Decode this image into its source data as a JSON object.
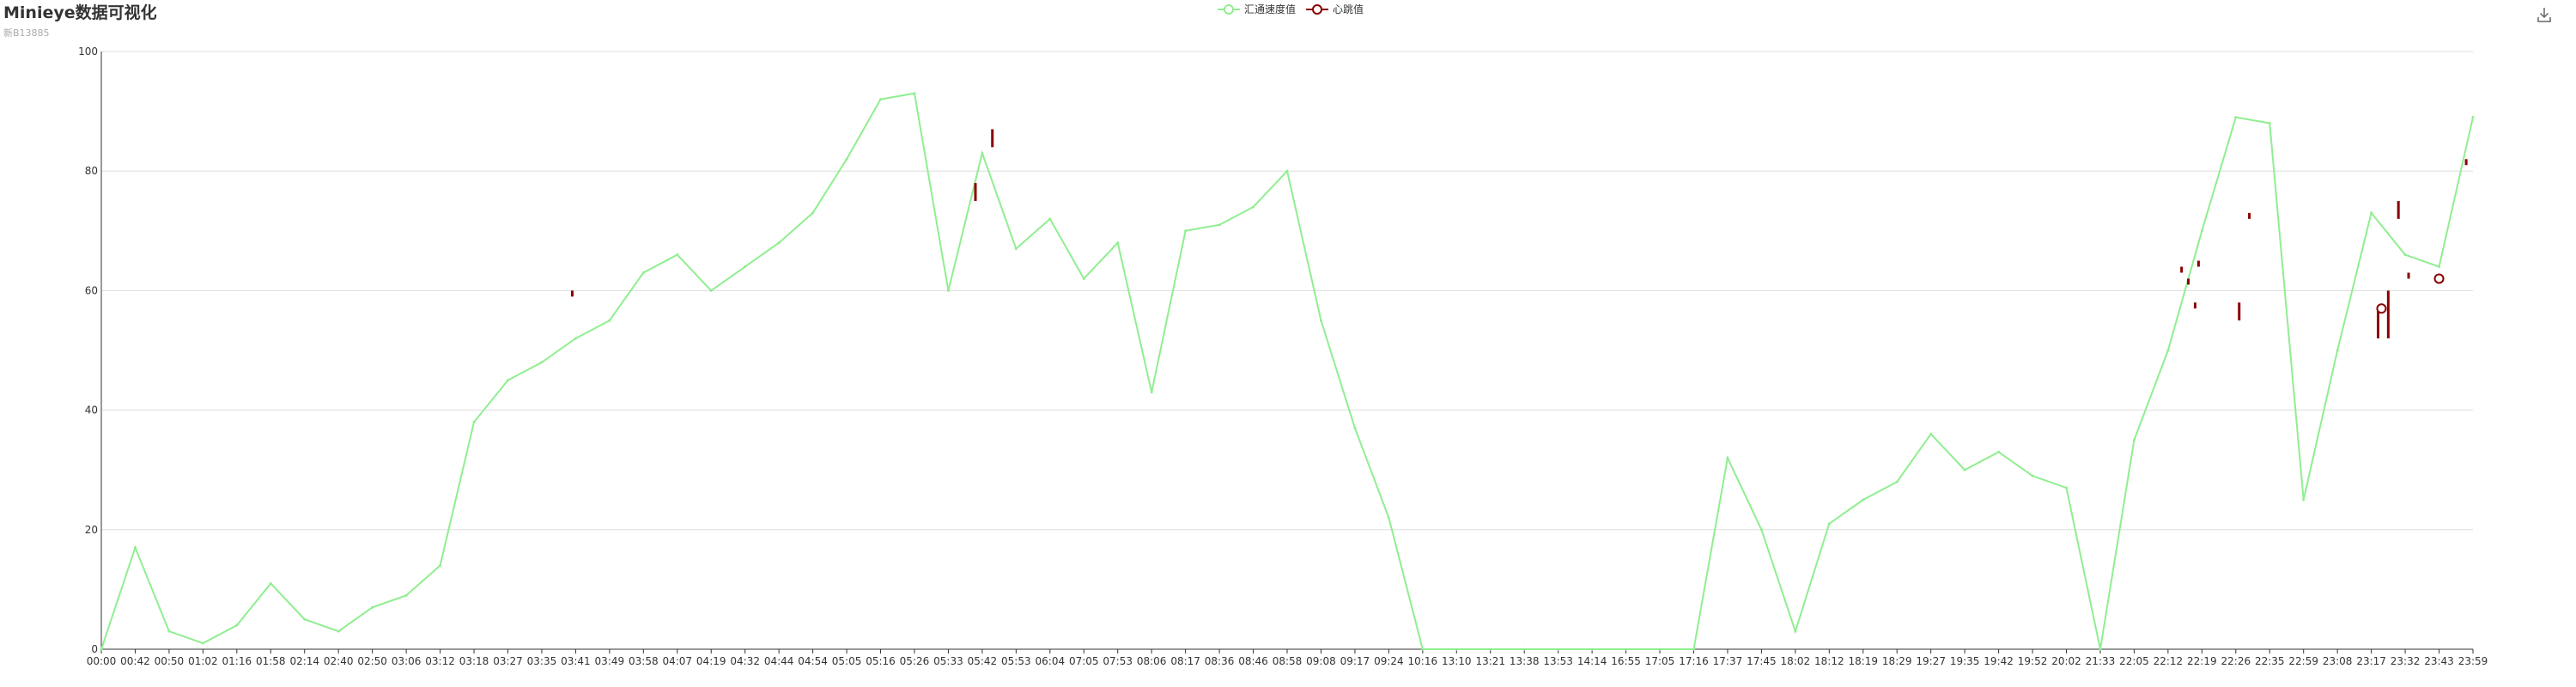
{
  "header": {
    "title": "Minieye数据可视化",
    "subtitle": "新B13885"
  },
  "legend": [
    {
      "label": "汇通速度值",
      "color": "#90ee90"
    },
    {
      "label": "心跳值",
      "color": "#8b0000"
    }
  ],
  "toolbar": {
    "save_icon": "download-icon"
  },
  "chart_data": {
    "type": "line",
    "title": "Minieye数据可视化",
    "subtitle": "新B13885",
    "xlabel": "",
    "ylabel": "",
    "ylim": [
      0,
      100
    ],
    "yticks": [
      0,
      20,
      40,
      60,
      80,
      100
    ],
    "grid": true,
    "legend_position": "top-center",
    "x_categories": [
      "00:00",
      "00:42",
      "00:50",
      "01:02",
      "01:16",
      "01:58",
      "02:14",
      "02:40",
      "02:50",
      "03:06",
      "03:12",
      "03:18",
      "03:27",
      "03:35",
      "03:41",
      "03:49",
      "03:58",
      "04:07",
      "04:19",
      "04:32",
      "04:44",
      "04:54",
      "05:05",
      "05:16",
      "05:26",
      "05:33",
      "05:42",
      "05:53",
      "06:04",
      "07:05",
      "07:53",
      "08:06",
      "08:17",
      "08:36",
      "08:46",
      "08:58",
      "09:08",
      "09:17",
      "09:24",
      "10:16",
      "13:10",
      "13:21",
      "13:38",
      "13:53",
      "14:14",
      "16:55",
      "17:05",
      "17:16",
      "17:37",
      "17:45",
      "18:02",
      "18:12",
      "18:19",
      "18:29",
      "19:27",
      "19:35",
      "19:42",
      "19:52",
      "20:02",
      "21:33",
      "22:05",
      "22:12",
      "22:19",
      "22:26",
      "22:35",
      "22:59",
      "23:08",
      "23:17",
      "23:32",
      "23:43",
      "23:59"
    ],
    "series": [
      {
        "name": "汇通速度值",
        "color": "#90ee90",
        "x": [
          0,
          1,
          2,
          3,
          4,
          5,
          6,
          7,
          8,
          9,
          10,
          11,
          12,
          13,
          14,
          15,
          16,
          17,
          18,
          19,
          20,
          21,
          22,
          23,
          24,
          25,
          26,
          27,
          28,
          29,
          30,
          31,
          32,
          33,
          34,
          35,
          36,
          37,
          38,
          39,
          40,
          41,
          42,
          43,
          44,
          45,
          46,
          47,
          48,
          49,
          50,
          51,
          52,
          53,
          54,
          55,
          56,
          57,
          58,
          59,
          60,
          61,
          62,
          63,
          64,
          65,
          66,
          67,
          68,
          69,
          70
        ],
        "y": [
          0,
          17,
          3,
          1,
          4,
          11,
          5,
          3,
          7,
          9,
          14,
          38,
          45,
          48,
          52,
          55,
          63,
          66,
          60,
          64,
          68,
          73,
          82,
          92,
          93,
          60,
          83,
          67,
          72,
          62,
          68,
          43,
          70,
          71,
          74,
          80,
          55,
          37,
          22,
          0,
          0,
          0,
          0,
          0,
          0,
          0,
          0,
          0,
          32,
          20,
          3,
          21,
          25,
          28,
          36,
          30,
          33,
          29,
          27,
          0,
          35,
          50,
          70,
          89,
          88,
          25,
          50,
          73,
          66,
          64,
          89
        ]
      },
      {
        "name": "心跳值",
        "color": "#8b0000",
        "segments": [
          {
            "x": 13.9,
            "y": [
              59,
              60
            ]
          },
          {
            "x": 25.8,
            "y": [
              75,
              78
            ]
          },
          {
            "x": 26.3,
            "y": [
              84,
              87
            ]
          },
          {
            "x": 61.4,
            "y": [
              63,
              64
            ]
          },
          {
            "x": 61.6,
            "y": [
              61,
              62
            ]
          },
          {
            "x": 61.8,
            "y": [
              57,
              58
            ]
          },
          {
            "x": 61.9,
            "y": [
              64,
              65
            ]
          },
          {
            "x": 63.1,
            "y": [
              55,
              58
            ]
          },
          {
            "x": 63.4,
            "y": [
              72,
              73
            ]
          },
          {
            "x": 67.2,
            "y": [
              52,
              57
            ]
          },
          {
            "x": 67.5,
            "y": [
              52,
              60
            ]
          },
          {
            "x": 67.8,
            "y": [
              72,
              75
            ]
          },
          {
            "x": 68.1,
            "y": [
              62,
              63
            ]
          },
          {
            "x": 69.8,
            "y": [
              81,
              82
            ]
          }
        ],
        "points": [
          {
            "x": 67.3,
            "y": 57
          },
          {
            "x": 69.0,
            "y": 62
          }
        ]
      }
    ]
  }
}
